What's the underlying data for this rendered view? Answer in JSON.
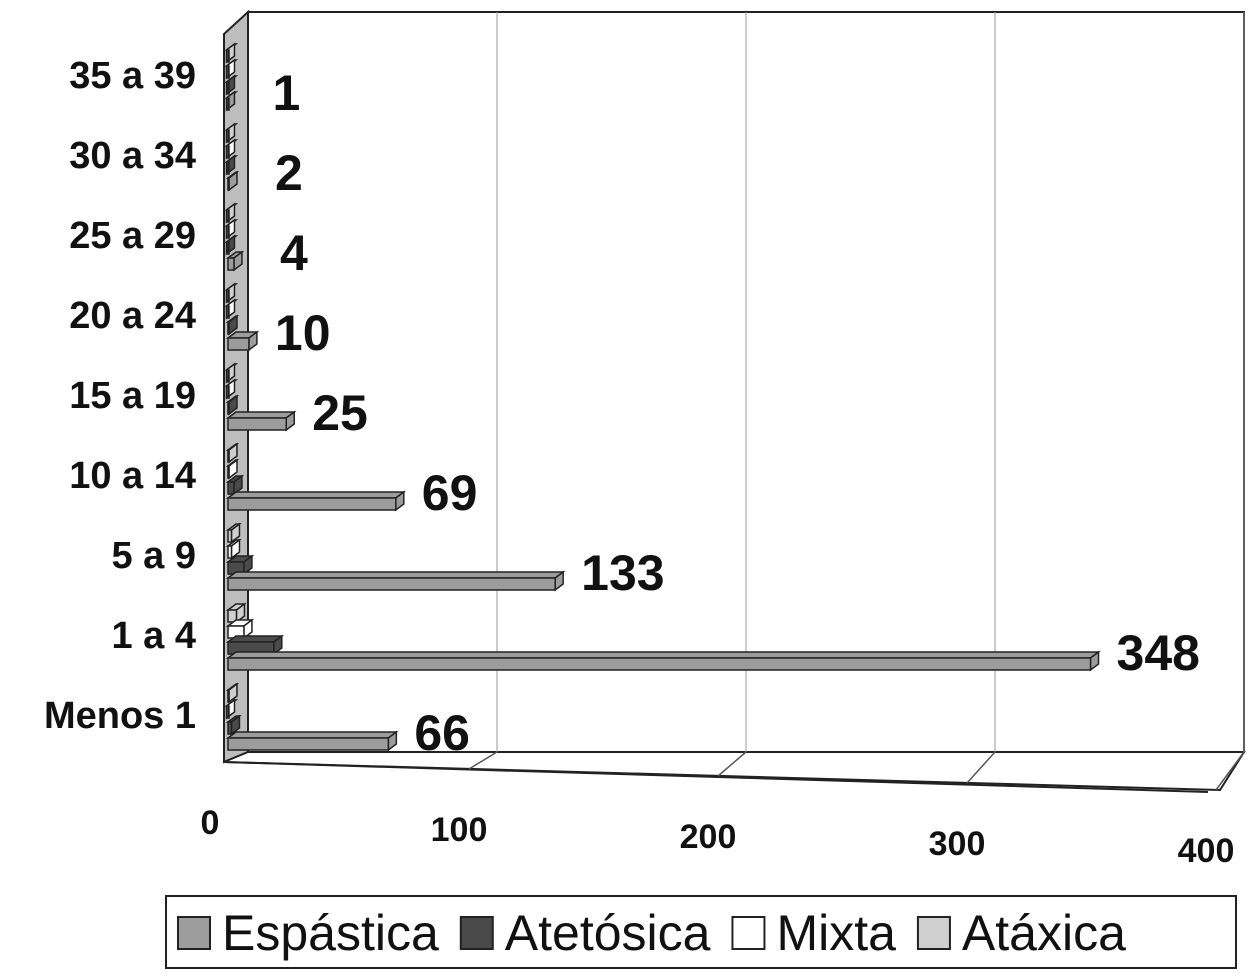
{
  "chart_data": {
    "type": "bar",
    "orientation": "horizontal",
    "three_d": true,
    "categories": [
      "Menos 1",
      "1 a 4",
      "5 a 9",
      "10 a 14",
      "15 a 19",
      "20 a 24",
      "25 a 29",
      "30 a 34",
      "35 a 39"
    ],
    "series": [
      {
        "name": "Espástica",
        "color": "#9c9c9c",
        "values": [
          66,
          348,
          133,
          69,
          25,
          10,
          4,
          2,
          1
        ]
      },
      {
        "name": "Atetósica",
        "color": "#4a4a4a",
        "values": [
          3,
          20,
          8,
          4,
          2,
          2,
          1,
          1,
          1
        ]
      },
      {
        "name": "Mixta",
        "color": "#ffffff",
        "values": [
          1,
          8,
          3,
          2,
          1,
          1,
          1,
          1,
          1
        ]
      },
      {
        "name": "Atáxica",
        "color": "#cfcfcf",
        "values": [
          2,
          5,
          3,
          2,
          1,
          1,
          1,
          1,
          1
        ]
      }
    ],
    "data_labels": [
      "66",
      "348",
      "133",
      "69",
      "25",
      "10",
      "4",
      "2",
      "1"
    ],
    "xlim": [
      0,
      400
    ],
    "x_ticks": [
      "0",
      "100",
      "200",
      "300",
      "400"
    ],
    "grid": "vertical",
    "legend_position": "bottom"
  }
}
